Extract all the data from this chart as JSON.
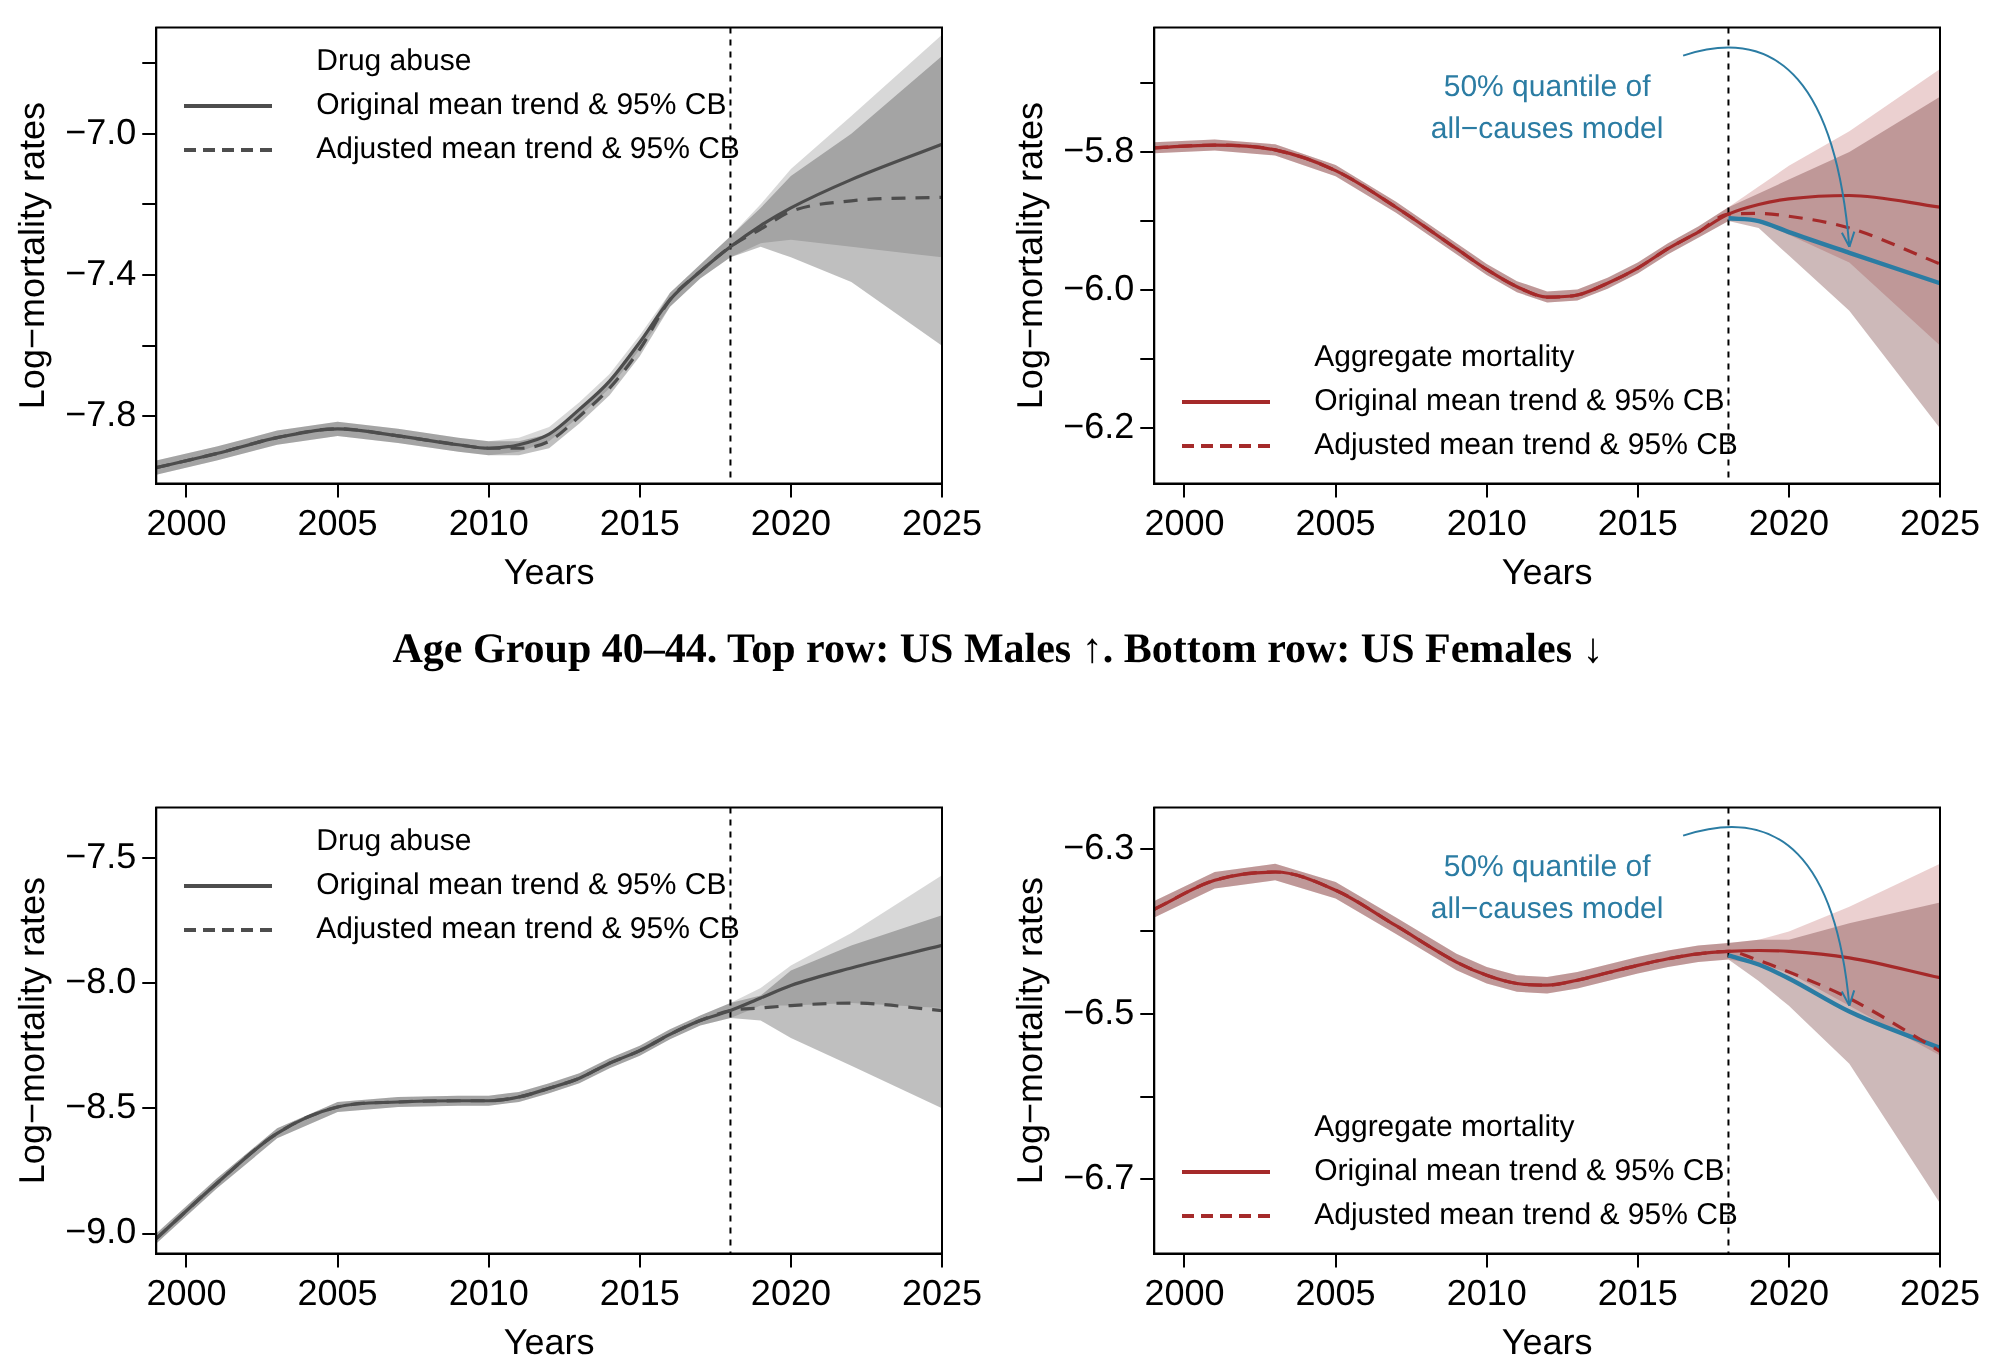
{
  "chart_data": [
    {
      "type": "line",
      "xlabel": "Years",
      "ylabel": "Log−mortality rates",
      "legend_title": "Drug abuse",
      "legend": "top left",
      "marker": "none",
      "grid": false,
      "x": [
        1999,
        2001,
        2003,
        2005,
        2007,
        2009,
        2010,
        2011,
        2012,
        2013,
        2014,
        2015,
        2016,
        2017,
        2018,
        2019,
        2020,
        2022,
        2025
      ],
      "xlim": [
        1999,
        2025
      ],
      "xticks": [
        2000,
        2005,
        2010,
        2015,
        2020,
        2025
      ],
      "ylim": [
        -7.99,
        -6.7
      ],
      "yticks": [
        {
          "value": -6.8,
          "label": null
        },
        {
          "value": -7.0,
          "label": "−7.0"
        },
        {
          "value": -7.2,
          "label": null
        },
        {
          "value": -7.4,
          "label": "−7.4"
        },
        {
          "value": -7.6,
          "label": null
        },
        {
          "value": -7.8,
          "label": "−7.8"
        }
      ],
      "ref_lines": [
        {
          "axis": "x",
          "value": 2018,
          "label": null,
          "color": "#000000",
          "line_style": "dashed"
        }
      ],
      "series": [
        {
          "name": "Original mean trend & 95% CB",
          "color": "#4d4d4d",
          "line_style": "solid",
          "values": [
            -7.945,
            -7.905,
            -7.86,
            -7.835,
            -7.855,
            -7.88,
            -7.89,
            -7.88,
            -7.85,
            -7.78,
            -7.7,
            -7.59,
            -7.47,
            -7.39,
            -7.32,
            -7.26,
            -7.21,
            -7.13,
            -7.03
          ],
          "lower": [
            -7.965,
            -7.925,
            -7.88,
            -7.855,
            -7.875,
            -7.9,
            -7.91,
            -7.9,
            -7.87,
            -7.8,
            -7.72,
            -7.61,
            -7.49,
            -7.41,
            -7.35,
            -7.31,
            -7.3,
            -7.32,
            -7.35
          ],
          "upper": [
            -7.925,
            -7.885,
            -7.84,
            -7.815,
            -7.835,
            -7.86,
            -7.87,
            -7.86,
            -7.83,
            -7.76,
            -7.68,
            -7.57,
            -7.45,
            -7.37,
            -7.29,
            -7.2,
            -7.1,
            -6.95,
            -6.72
          ]
        },
        {
          "name": "Adjusted mean trend & 95% CB",
          "color": "#4d4d4d",
          "line_style": "dashed",
          "values": [
            -7.945,
            -7.905,
            -7.86,
            -7.835,
            -7.855,
            -7.88,
            -7.89,
            -7.89,
            -7.87,
            -7.8,
            -7.72,
            -7.61,
            -7.47,
            -7.39,
            -7.32,
            -7.27,
            -7.22,
            -7.19,
            -7.18
          ],
          "lower": [
            -7.965,
            -7.925,
            -7.88,
            -7.855,
            -7.875,
            -7.9,
            -7.91,
            -7.91,
            -7.89,
            -7.82,
            -7.74,
            -7.63,
            -7.49,
            -7.41,
            -7.35,
            -7.32,
            -7.35,
            -7.42,
            -7.6
          ],
          "upper": [
            -7.925,
            -7.885,
            -7.84,
            -7.815,
            -7.835,
            -7.86,
            -7.87,
            -7.87,
            -7.85,
            -7.78,
            -7.7,
            -7.59,
            -7.45,
            -7.37,
            -7.29,
            -7.21,
            -7.12,
            -7.0,
            -6.78
          ]
        }
      ]
    },
    {
      "type": "line",
      "xlabel": "Years",
      "ylabel": "Log−mortality rates",
      "legend_title": "Aggregate mortality",
      "legend": "bottom left",
      "marker": "none",
      "grid": false,
      "x": [
        1999,
        2001,
        2003,
        2005,
        2007,
        2009,
        2010,
        2011,
        2012,
        2013,
        2014,
        2015,
        2016,
        2017,
        2018,
        2019,
        2020,
        2022,
        2025
      ],
      "xlim": [
        1999,
        2025
      ],
      "xticks": [
        2000,
        2005,
        2010,
        2015,
        2020,
        2025
      ],
      "ylim": [
        -6.28,
        -5.62
      ],
      "yticks": [
        {
          "value": -5.7,
          "label": null
        },
        {
          "value": -5.8,
          "label": "−5.8"
        },
        {
          "value": -5.9,
          "label": null
        },
        {
          "value": -6.0,
          "label": "−6.0"
        },
        {
          "value": -6.1,
          "label": null
        },
        {
          "value": -6.2,
          "label": "−6.2"
        }
      ],
      "ref_lines": [
        {
          "axis": "x",
          "value": 2018,
          "label": null,
          "color": "#000000",
          "line_style": "dashed"
        }
      ],
      "annotations": [
        {
          "text": "50% quantile of all−causes model",
          "x": 2022,
          "y": -5.946
        }
      ],
      "series": [
        {
          "name": "Original mean trend & 95% CB",
          "color": "#a52a2a",
          "line_style": "solid",
          "values": [
            -5.794,
            -5.79,
            -5.797,
            -5.827,
            -5.88,
            -5.94,
            -5.97,
            -5.995,
            -6.01,
            -6.007,
            -5.99,
            -5.968,
            -5.94,
            -5.916,
            -5.89,
            -5.876,
            -5.868,
            -5.863,
            -5.88
          ],
          "lower": [
            -5.802,
            -5.798,
            -5.805,
            -5.835,
            -5.888,
            -5.948,
            -5.978,
            -6.003,
            -6.018,
            -6.015,
            -5.998,
            -5.976,
            -5.948,
            -5.924,
            -5.9,
            -5.9,
            -5.92,
            -5.96,
            -6.08
          ],
          "upper": [
            -5.786,
            -5.782,
            -5.789,
            -5.819,
            -5.872,
            -5.932,
            -5.962,
            -5.987,
            -6.002,
            -5.999,
            -5.982,
            -5.96,
            -5.932,
            -5.908,
            -5.88,
            -5.85,
            -5.82,
            -5.77,
            -5.68
          ]
        },
        {
          "name": "Adjusted mean trend & 95% CB",
          "color": "#a52a2a",
          "line_style": "dashed",
          "values": [
            -5.794,
            -5.79,
            -5.797,
            -5.827,
            -5.88,
            -5.94,
            -5.97,
            -5.995,
            -6.01,
            -6.007,
            -5.99,
            -5.968,
            -5.94,
            -5.916,
            -5.89,
            -5.889,
            -5.893,
            -5.91,
            -5.962
          ],
          "lower": [
            -5.802,
            -5.798,
            -5.805,
            -5.835,
            -5.888,
            -5.948,
            -5.978,
            -6.003,
            -6.018,
            -6.015,
            -5.998,
            -5.976,
            -5.948,
            -5.924,
            -5.9,
            -5.91,
            -5.95,
            -6.03,
            -6.2
          ],
          "upper": [
            -5.786,
            -5.782,
            -5.789,
            -5.819,
            -5.872,
            -5.932,
            -5.962,
            -5.987,
            -6.002,
            -5.999,
            -5.982,
            -5.96,
            -5.932,
            -5.908,
            -5.88,
            -5.86,
            -5.84,
            -5.8,
            -5.72
          ]
        },
        {
          "color": "#2b7ca3",
          "line_style": "solid",
          "values": [
            null,
            null,
            null,
            null,
            null,
            null,
            null,
            null,
            null,
            null,
            null,
            null,
            null,
            null,
            -5.896,
            -5.9,
            -5.916,
            -5.946,
            -5.99
          ]
        }
      ]
    },
    {
      "type": "line",
      "title": "Age Group 40–44. Top row: US Males ↑. Bottom row: US Females ↓",
      "xlabel": "Years",
      "ylabel": "Log−mortality rates",
      "legend_title": "Drug abuse",
      "legend": "top left",
      "marker": "none",
      "grid": false,
      "x": [
        1999,
        2001,
        2003,
        2005,
        2007,
        2009,
        2010,
        2011,
        2012,
        2013,
        2014,
        2015,
        2016,
        2017,
        2018,
        2019,
        2020,
        2022,
        2025
      ],
      "xlim": [
        1999,
        2025
      ],
      "xticks": [
        2000,
        2005,
        2010,
        2015,
        2020,
        2025
      ],
      "ylim": [
        -9.08,
        -7.3
      ],
      "yticks": [
        {
          "value": -7.5,
          "label": "−7.5"
        },
        {
          "value": -8.0,
          "label": "−8.0"
        },
        {
          "value": -8.5,
          "label": "−8.5"
        },
        {
          "value": -9.0,
          "label": "−9.0"
        }
      ],
      "ref_lines": [
        {
          "axis": "x",
          "value": 2018,
          "label": null,
          "color": "#000000",
          "line_style": "dashed"
        }
      ],
      "series": [
        {
          "name": "Original mean trend & 95% CB",
          "color": "#4d4d4d",
          "line_style": "solid",
          "values": [
            -9.02,
            -8.8,
            -8.6,
            -8.495,
            -8.475,
            -8.47,
            -8.47,
            -8.455,
            -8.42,
            -8.38,
            -8.32,
            -8.27,
            -8.205,
            -8.15,
            -8.11,
            -8.06,
            -8.01,
            -7.94,
            -7.85
          ],
          "lower": [
            -9.04,
            -8.82,
            -8.62,
            -8.515,
            -8.495,
            -8.49,
            -8.49,
            -8.475,
            -8.44,
            -8.4,
            -8.34,
            -8.29,
            -8.225,
            -8.17,
            -8.14,
            -8.09,
            -8.09,
            -8.08,
            -8.1
          ],
          "upper": [
            -9.0,
            -8.78,
            -8.58,
            -8.475,
            -8.455,
            -8.45,
            -8.45,
            -8.435,
            -8.4,
            -8.36,
            -8.3,
            -8.25,
            -8.185,
            -8.13,
            -8.08,
            -8.02,
            -7.93,
            -7.8,
            -7.57
          ]
        },
        {
          "name": "Adjusted mean trend & 95% CB",
          "color": "#4d4d4d",
          "line_style": "dashed",
          "values": [
            -9.02,
            -8.8,
            -8.6,
            -8.495,
            -8.475,
            -8.47,
            -8.47,
            -8.455,
            -8.42,
            -8.38,
            -8.32,
            -8.27,
            -8.205,
            -8.15,
            -8.11,
            -8.1,
            -8.09,
            -8.08,
            -8.11
          ],
          "lower": [
            -9.04,
            -8.82,
            -8.62,
            -8.515,
            -8.495,
            -8.49,
            -8.49,
            -8.475,
            -8.44,
            -8.4,
            -8.34,
            -8.29,
            -8.225,
            -8.17,
            -8.14,
            -8.15,
            -8.22,
            -8.33,
            -8.5
          ],
          "upper": [
            -9.0,
            -8.78,
            -8.58,
            -8.475,
            -8.455,
            -8.45,
            -8.45,
            -8.435,
            -8.4,
            -8.36,
            -8.3,
            -8.25,
            -8.185,
            -8.13,
            -8.08,
            -8.05,
            -7.95,
            -7.85,
            -7.73
          ]
        }
      ]
    },
    {
      "type": "line",
      "xlabel": "Years",
      "ylabel": "Log−mortality rates",
      "legend_title": "Aggregate mortality",
      "legend": "bottom left",
      "marker": "none",
      "grid": false,
      "x": [
        1999,
        2001,
        2003,
        2005,
        2007,
        2009,
        2010,
        2011,
        2012,
        2013,
        2014,
        2015,
        2016,
        2017,
        2018,
        2019,
        2020,
        2022,
        2025
      ],
      "xlim": [
        1999,
        2025
      ],
      "xticks": [
        2000,
        2005,
        2010,
        2015,
        2020,
        2025
      ],
      "ylim": [
        -6.79,
        -6.25
      ],
      "yticks": [
        {
          "value": -6.3,
          "label": "−6.3"
        },
        {
          "value": -6.4,
          "label": null
        },
        {
          "value": -6.5,
          "label": "−6.5"
        },
        {
          "value": -6.6,
          "label": null
        },
        {
          "value": -6.7,
          "label": "−6.7"
        }
      ],
      "ref_lines": [
        {
          "axis": "x",
          "value": 2018,
          "label": null,
          "color": "#000000",
          "line_style": "dashed"
        }
      ],
      "annotations": [
        {
          "text": "50% quantile of all−causes model",
          "x": 2022,
          "y": -6.497
        }
      ],
      "series": [
        {
          "name": "Original mean trend & 95% CB",
          "color": "#a52a2a",
          "line_style": "solid",
          "values": [
            -6.373,
            -6.338,
            -6.328,
            -6.35,
            -6.393,
            -6.437,
            -6.453,
            -6.463,
            -6.465,
            -6.459,
            -6.45,
            -6.441,
            -6.433,
            -6.427,
            -6.424,
            -6.423,
            -6.424,
            -6.432,
            -6.456
          ],
          "lower": [
            -6.383,
            -6.348,
            -6.338,
            -6.36,
            -6.403,
            -6.447,
            -6.463,
            -6.473,
            -6.475,
            -6.469,
            -6.46,
            -6.451,
            -6.443,
            -6.437,
            -6.434,
            -6.44,
            -6.45,
            -6.49,
            -6.55
          ],
          "upper": [
            -6.363,
            -6.328,
            -6.318,
            -6.34,
            -6.383,
            -6.427,
            -6.443,
            -6.453,
            -6.455,
            -6.449,
            -6.44,
            -6.431,
            -6.423,
            -6.417,
            -6.414,
            -6.41,
            -6.4,
            -6.37,
            -6.318
          ]
        },
        {
          "name": "Adjusted mean trend & 95% CB",
          "color": "#a52a2a",
          "line_style": "dashed",
          "values": [
            -6.373,
            -6.338,
            -6.328,
            -6.35,
            -6.393,
            -6.437,
            -6.453,
            -6.463,
            -6.465,
            -6.459,
            -6.45,
            -6.441,
            -6.433,
            -6.427,
            -6.424,
            -6.435,
            -6.449,
            -6.481,
            -6.545
          ],
          "lower": [
            -6.383,
            -6.348,
            -6.338,
            -6.36,
            -6.403,
            -6.447,
            -6.463,
            -6.473,
            -6.475,
            -6.469,
            -6.46,
            -6.451,
            -6.443,
            -6.437,
            -6.434,
            -6.46,
            -6.49,
            -6.56,
            -6.729
          ],
          "upper": [
            -6.363,
            -6.328,
            -6.318,
            -6.34,
            -6.383,
            -6.427,
            -6.443,
            -6.453,
            -6.455,
            -6.449,
            -6.44,
            -6.431,
            -6.423,
            -6.417,
            -6.414,
            -6.41,
            -6.41,
            -6.39,
            -6.365
          ]
        },
        {
          "color": "#2b7ca3",
          "line_style": "solid",
          "values": [
            null,
            null,
            null,
            null,
            null,
            null,
            null,
            null,
            null,
            null,
            null,
            null,
            null,
            null,
            -6.429,
            -6.44,
            -6.457,
            -6.497,
            -6.541
          ]
        }
      ]
    }
  ]
}
